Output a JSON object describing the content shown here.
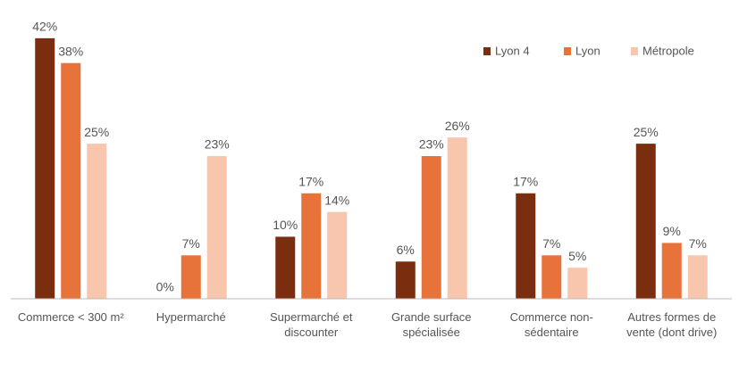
{
  "chart_data": {
    "type": "bar",
    "categories": [
      "Commerce < 300 m²",
      "Hypermarché",
      "Supermarché et discounter",
      "Grande surface spécialisée",
      "Commerce non-sédentaire",
      "Autres formes de vente (dont drive)"
    ],
    "series": [
      {
        "name": "Lyon 4",
        "color": "#7a2e0f",
        "values": [
          42,
          0,
          10,
          6,
          17,
          25
        ],
        "value_labels": [
          "42%",
          "0%",
          "10%",
          "6%",
          "17%",
          "25%"
        ]
      },
      {
        "name": "Lyon",
        "color": "#e8733a",
        "values": [
          38,
          7,
          17,
          23,
          7,
          9
        ],
        "value_labels": [
          "38%",
          "7%",
          "17%",
          "23%",
          "7%",
          "9%"
        ]
      },
      {
        "name": "Métropole",
        "color": "#f8c6ad",
        "values": [
          25,
          23,
          14,
          26,
          5,
          7
        ],
        "value_labels": [
          "25%",
          "23%",
          "14%",
          "26%",
          "5%",
          "7%"
        ]
      }
    ],
    "ylim": [
      0,
      45
    ],
    "legend": "top-right"
  }
}
